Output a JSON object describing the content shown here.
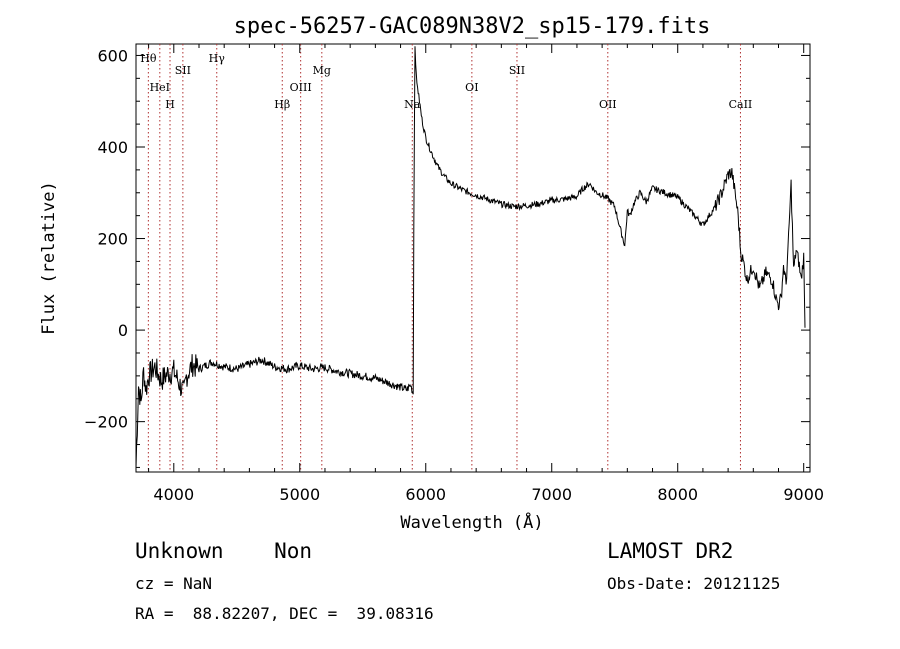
{
  "chart_data": {
    "type": "line",
    "title": "spec-56257-GAC089N38V2_sp15-179.fits",
    "xlabel": "Wavelength (Å)",
    "ylabel": "Flux (relative)",
    "xlim": [
      3700,
      9050
    ],
    "ylim": [
      -310,
      625
    ],
    "xticks": [
      4000,
      5000,
      6000,
      7000,
      8000,
      9000
    ],
    "yticks": [
      -200,
      0,
      200,
      400,
      600
    ],
    "ytick_labels": [
      "−200",
      "0",
      "200",
      "400",
      "600"
    ],
    "grid": false,
    "series": [
      {
        "x": [
          3700,
          3720,
          3740,
          3760,
          3780,
          3800,
          3850,
          3900,
          3950,
          4000,
          4050,
          4080,
          4100,
          4150,
          4200,
          4300,
          4400,
          4500,
          4600,
          4700,
          4800,
          4900,
          5000,
          5100,
          5200,
          5300,
          5400,
          5500,
          5600,
          5700,
          5800,
          5850,
          5880,
          5900,
          5905,
          5910,
          5915,
          5920,
          5930,
          5950,
          5970,
          6000,
          6050,
          6100,
          6150,
          6200,
          6300,
          6400,
          6500,
          6600,
          6700,
          6800,
          6900,
          7000,
          7100,
          7200,
          7250,
          7300,
          7350,
          7400,
          7450,
          7500,
          7550,
          7580,
          7600,
          7620,
          7650,
          7700,
          7750,
          7800,
          7900,
          8000,
          8100,
          8200,
          8300,
          8350,
          8400,
          8430,
          8460,
          8480,
          8500,
          8520,
          8550,
          8600,
          8650,
          8700,
          8750,
          8780,
          8800,
          8820,
          8840,
          8860,
          8880,
          8900,
          8920,
          8940,
          8960,
          8980,
          9000,
          9010
        ],
        "y": [
          -300,
          -120,
          -160,
          -90,
          -130,
          -100,
          -80,
          -110,
          -95,
          -90,
          -120,
          -140,
          -100,
          -75,
          -85,
          -70,
          -80,
          -85,
          -75,
          -65,
          -80,
          -85,
          -78,
          -85,
          -82,
          -90,
          -95,
          -100,
          -105,
          -115,
          -125,
          -130,
          -120,
          -140,
          220,
          440,
          620,
          580,
          540,
          500,
          460,
          420,
          385,
          355,
          335,
          320,
          305,
          295,
          285,
          275,
          270,
          272,
          276,
          283,
          286,
          292,
          310,
          320,
          302,
          295,
          286,
          270,
          215,
          185,
          260,
          250,
          275,
          300,
          280,
          310,
          300,
          290,
          260,
          230,
          270,
          300,
          340,
          345,
          290,
          250,
          170,
          150,
          110,
          140,
          90,
          125,
          110,
          70,
          55,
          70,
          140,
          100,
          200,
          320,
          130,
          175,
          150,
          110,
          160,
          5
        ]
      }
    ],
    "lines": [
      {
        "label": "Hθ",
        "x": 3798
      },
      {
        "label": "HeI",
        "x": 3889
      },
      {
        "label": "H",
        "x": 3970
      },
      {
        "label": "SII",
        "x": 4072
      },
      {
        "label": "Hγ",
        "x": 4341
      },
      {
        "label": "Hβ",
        "x": 4861
      },
      {
        "label": "OIII",
        "x": 5007
      },
      {
        "label": "Mg",
        "x": 5175
      },
      {
        "label": "Na",
        "x": 5893
      },
      {
        "label": "OI",
        "x": 6366
      },
      {
        "label": "SII",
        "x": 6724
      },
      {
        "label": "OII",
        "x": 7445
      },
      {
        "label": "CaII",
        "x": 8498
      }
    ],
    "line_color": "#b03030"
  },
  "info": {
    "class_text": "Unknown    Non",
    "survey": "LAMOST DR2",
    "cz": "cz = NaN",
    "obs_date": "Obs-Date: 20121125",
    "coords": "RA =  88.82207, DEC =  39.08316"
  }
}
